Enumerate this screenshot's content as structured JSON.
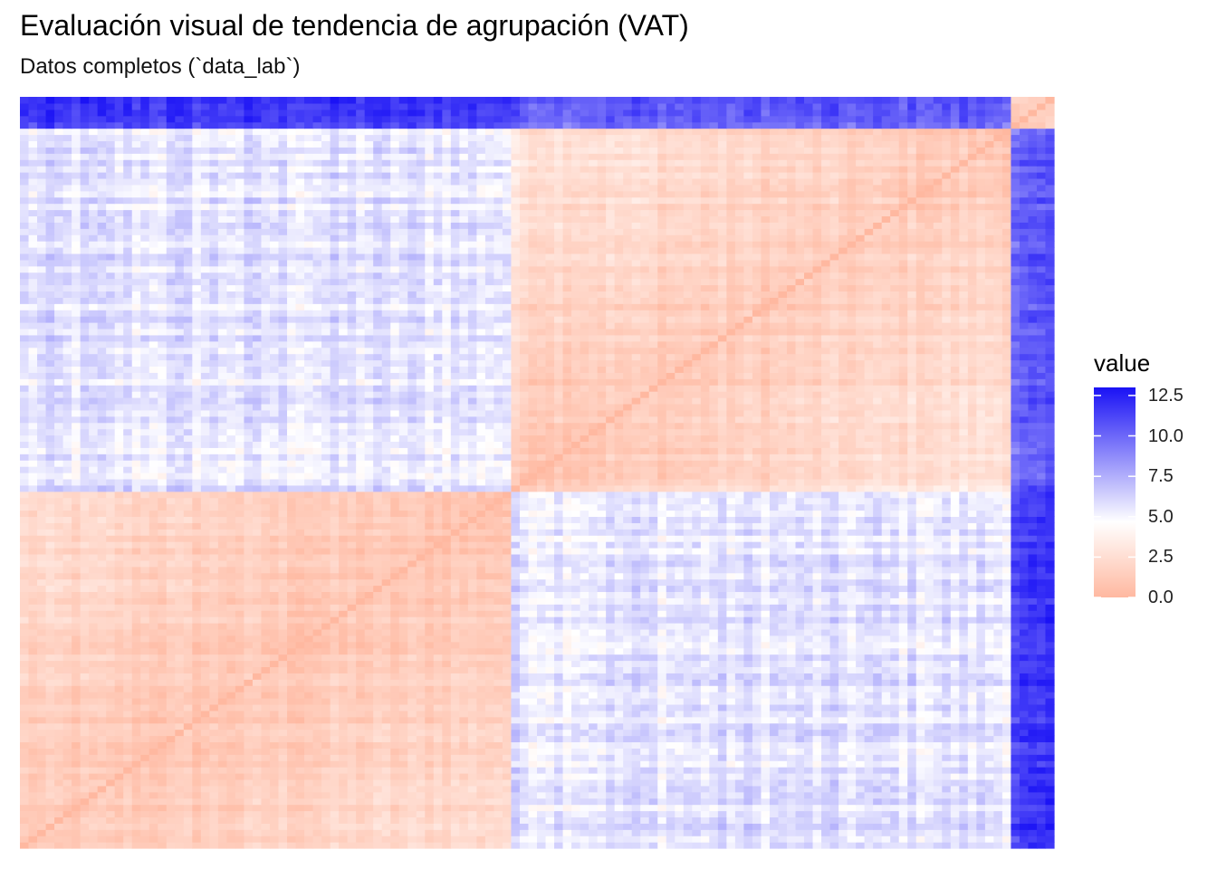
{
  "title": "Evaluación visual de tendencia de agrupación (VAT)",
  "subtitle": "Datos completos (`data_lab`)",
  "chart_data": {
    "type": "heatmap",
    "n_observations": 120,
    "fill_variable": "value",
    "value_range": [
      0,
      13
    ],
    "color_scale": {
      "low": "#ffb8a0",
      "mid": "#ffffff",
      "high": "#1a12f5",
      "midpoint": 4.5
    },
    "diagonal_value": 0,
    "clusters": [
      {
        "start": 0,
        "end": 57,
        "within_mean": 1.6
      },
      {
        "start": 57,
        "end": 115,
        "within_mean": 2.1
      },
      {
        "start": 115,
        "end": 120,
        "within_mean": 1.0
      }
    ],
    "between_means": [
      {
        "a": 0,
        "b": 1,
        "mean": 5.4
      },
      {
        "a": 0,
        "b": 2,
        "mean": 11.2
      },
      {
        "a": 1,
        "b": 2,
        "mean": 10.0
      }
    ],
    "legend": {
      "title": "value",
      "ticks": [
        {
          "value": 0.0,
          "label": "0.0"
        },
        {
          "value": 2.5,
          "label": "2.5"
        },
        {
          "value": 5.0,
          "label": "5.0"
        },
        {
          "value": 7.5,
          "label": "7.5"
        },
        {
          "value": 10.0,
          "label": "10.0"
        },
        {
          "value": 12.5,
          "label": "12.5"
        }
      ]
    }
  }
}
